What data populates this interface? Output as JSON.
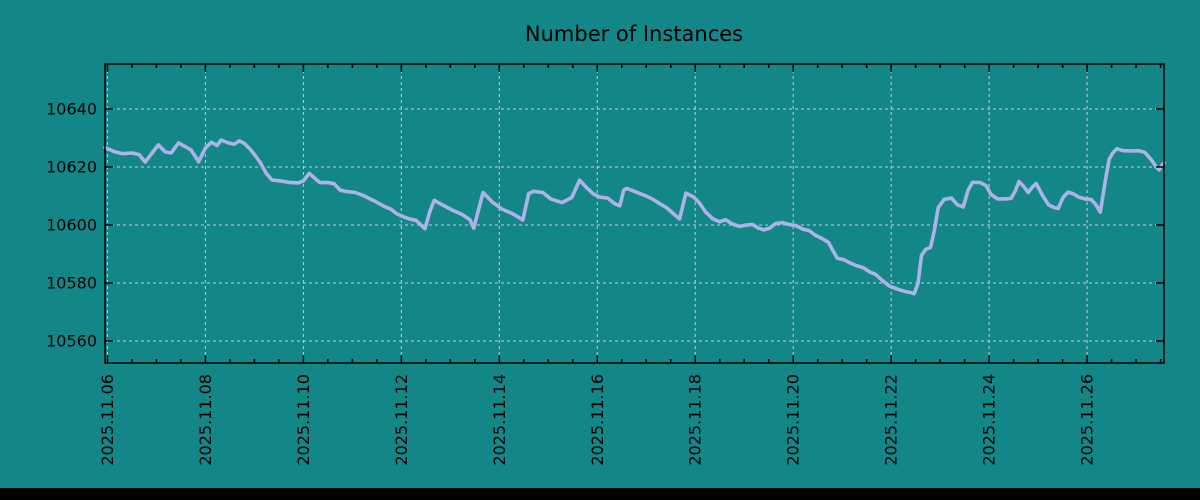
{
  "window": {
    "bottom_bar_color": "#000000"
  },
  "chart_data": {
    "type": "line",
    "title": "Number of Instances",
    "xlabel": "",
    "ylabel": "",
    "grid": "dashed-major-both-axes",
    "legend": "none",
    "colors": {
      "background": "#138688",
      "line": "#aeb2e8",
      "grid": "#c9cfcc",
      "axis": "#000000",
      "text": "#000000"
    },
    "x_axis": {
      "unit": "days since 2025-11-06 00:00",
      "range_days": [
        -0.05,
        21.57
      ],
      "major_ticks_t": [
        0,
        2,
        4,
        6,
        8,
        10,
        12,
        14,
        16,
        18,
        20
      ],
      "tick_labels": [
        "2025.11.06",
        "2025.11.08",
        "2025.11.10",
        "2025.11.12",
        "2025.11.14",
        "2025.11.16",
        "2025.11.18",
        "2025.11.20",
        "2025.11.22",
        "2025.11.24",
        "2025.11.26"
      ],
      "minor_tick_step_days": 0.5,
      "tick_label_rotation_deg": -90
    },
    "y_axis": {
      "range": [
        10552.4,
        10655.5
      ],
      "major_ticks": [
        10560,
        10580,
        10600,
        10620,
        10640
      ],
      "tick_labels": [
        "10560",
        "10580",
        "10600",
        "10620",
        "10640"
      ]
    },
    "series": [
      {
        "name": "instances",
        "color": "#aeb2e8",
        "points_t_days_value": [
          [
            -0.05,
            10626.7
          ],
          [
            0.14,
            10625.3
          ],
          [
            0.31,
            10624.6
          ],
          [
            0.51,
            10624.8
          ],
          [
            0.65,
            10624.2
          ],
          [
            0.77,
            10621.7
          ],
          [
            0.92,
            10625.0
          ],
          [
            1.04,
            10627.6
          ],
          [
            1.18,
            10625.2
          ],
          [
            1.3,
            10624.8
          ],
          [
            1.45,
            10628.3
          ],
          [
            1.59,
            10627.0
          ],
          [
            1.71,
            10625.8
          ],
          [
            1.86,
            10621.8
          ],
          [
            2.0,
            10626.5
          ],
          [
            2.12,
            10628.5
          ],
          [
            2.24,
            10627.4
          ],
          [
            2.32,
            10629.3
          ],
          [
            2.47,
            10628.3
          ],
          [
            2.59,
            10627.8
          ],
          [
            2.69,
            10629.0
          ],
          [
            2.79,
            10628.2
          ],
          [
            2.92,
            10626.0
          ],
          [
            3.02,
            10623.8
          ],
          [
            3.12,
            10621.5
          ],
          [
            3.24,
            10617.8
          ],
          [
            3.36,
            10615.5
          ],
          [
            3.53,
            10615.2
          ],
          [
            3.73,
            10614.6
          ],
          [
            3.89,
            10614.5
          ],
          [
            4.0,
            10615.2
          ],
          [
            4.12,
            10617.8
          ],
          [
            4.24,
            10616.0
          ],
          [
            4.34,
            10614.6
          ],
          [
            4.51,
            10614.6
          ],
          [
            4.63,
            10614.2
          ],
          [
            4.75,
            10612.0
          ],
          [
            4.89,
            10611.5
          ],
          [
            5.06,
            10611.2
          ],
          [
            5.22,
            10610.2
          ],
          [
            5.36,
            10609.0
          ],
          [
            5.5,
            10607.8
          ],
          [
            5.65,
            10606.4
          ],
          [
            5.79,
            10605.4
          ],
          [
            5.91,
            10603.8
          ],
          [
            6.06,
            10602.7
          ],
          [
            6.18,
            10602.0
          ],
          [
            6.3,
            10601.6
          ],
          [
            6.4,
            10600.0
          ],
          [
            6.48,
            10598.7
          ],
          [
            6.59,
            10605.0
          ],
          [
            6.67,
            10608.5
          ],
          [
            6.83,
            10607.0
          ],
          [
            7.03,
            10605.2
          ],
          [
            7.24,
            10603.6
          ],
          [
            7.4,
            10601.8
          ],
          [
            7.48,
            10598.9
          ],
          [
            7.58,
            10605.5
          ],
          [
            7.67,
            10611.2
          ],
          [
            7.85,
            10608.0
          ],
          [
            8.05,
            10605.5
          ],
          [
            8.26,
            10604.0
          ],
          [
            8.4,
            10602.6
          ],
          [
            8.48,
            10601.7
          ],
          [
            8.6,
            10610.8
          ],
          [
            8.7,
            10611.6
          ],
          [
            8.89,
            10611.2
          ],
          [
            9.05,
            10609.0
          ],
          [
            9.28,
            10607.7
          ],
          [
            9.48,
            10609.5
          ],
          [
            9.64,
            10615.4
          ],
          [
            9.77,
            10613.1
          ],
          [
            9.91,
            10610.8
          ],
          [
            10.05,
            10609.6
          ],
          [
            10.21,
            10609.3
          ],
          [
            10.36,
            10607.3
          ],
          [
            10.46,
            10606.6
          ],
          [
            10.54,
            10612.0
          ],
          [
            10.6,
            10612.6
          ],
          [
            10.74,
            10611.7
          ],
          [
            10.87,
            10610.8
          ],
          [
            11.01,
            10609.9
          ],
          [
            11.15,
            10608.7
          ],
          [
            11.28,
            10607.3
          ],
          [
            11.42,
            10605.9
          ],
          [
            11.56,
            10603.8
          ],
          [
            11.68,
            10602.1
          ],
          [
            11.81,
            10611.0
          ],
          [
            11.97,
            10609.6
          ],
          [
            12.09,
            10607.5
          ],
          [
            12.21,
            10604.5
          ],
          [
            12.36,
            10602.1
          ],
          [
            12.5,
            10601.1
          ],
          [
            12.62,
            10601.8
          ],
          [
            12.76,
            10600.3
          ],
          [
            12.91,
            10599.5
          ],
          [
            13.03,
            10599.9
          ],
          [
            13.17,
            10600.2
          ],
          [
            13.29,
            10598.9
          ],
          [
            13.4,
            10598.3
          ],
          [
            13.52,
            10598.9
          ],
          [
            13.64,
            10600.5
          ],
          [
            13.78,
            10600.8
          ],
          [
            13.93,
            10600.1
          ],
          [
            14.05,
            10599.8
          ],
          [
            14.19,
            10598.6
          ],
          [
            14.33,
            10598.0
          ],
          [
            14.45,
            10596.5
          ],
          [
            14.6,
            10595.2
          ],
          [
            14.72,
            10594.0
          ],
          [
            14.8,
            10591.5
          ],
          [
            14.9,
            10588.5
          ],
          [
            15.04,
            10588.0
          ],
          [
            15.15,
            10587.0
          ],
          [
            15.29,
            10586.0
          ],
          [
            15.43,
            10585.3
          ],
          [
            15.56,
            10583.8
          ],
          [
            15.68,
            10583.0
          ],
          [
            15.82,
            10580.8
          ],
          [
            15.96,
            10579.0
          ],
          [
            16.11,
            10578.0
          ],
          [
            16.25,
            10577.2
          ],
          [
            16.39,
            10576.7
          ],
          [
            16.47,
            10576.3
          ],
          [
            16.55,
            10580.0
          ],
          [
            16.62,
            10589.5
          ],
          [
            16.7,
            10591.5
          ],
          [
            16.8,
            10592.2
          ],
          [
            16.88,
            10598.0
          ],
          [
            16.96,
            10606.0
          ],
          [
            17.08,
            10608.8
          ],
          [
            17.23,
            10609.3
          ],
          [
            17.35,
            10607.0
          ],
          [
            17.47,
            10606.2
          ],
          [
            17.57,
            10612.0
          ],
          [
            17.66,
            10614.7
          ],
          [
            17.82,
            10614.6
          ],
          [
            17.94,
            10613.5
          ],
          [
            18.04,
            10610.5
          ],
          [
            18.17,
            10609.0
          ],
          [
            18.33,
            10609.0
          ],
          [
            18.45,
            10609.2
          ],
          [
            18.53,
            10611.6
          ],
          [
            18.61,
            10615.0
          ],
          [
            18.72,
            10613.0
          ],
          [
            18.8,
            10611.2
          ],
          [
            18.88,
            10613.0
          ],
          [
            18.96,
            10614.3
          ],
          [
            19.08,
            10610.5
          ],
          [
            19.21,
            10607.0
          ],
          [
            19.33,
            10606.0
          ],
          [
            19.41,
            10605.7
          ],
          [
            19.51,
            10609.5
          ],
          [
            19.61,
            10611.3
          ],
          [
            19.71,
            10610.8
          ],
          [
            19.84,
            10609.5
          ],
          [
            19.96,
            10609.0
          ],
          [
            20.08,
            10608.8
          ],
          [
            20.18,
            10607.0
          ],
          [
            20.27,
            10604.4
          ],
          [
            20.37,
            10615.0
          ],
          [
            20.45,
            10622.6
          ],
          [
            20.53,
            10625.0
          ],
          [
            20.61,
            10626.3
          ],
          [
            20.73,
            10625.6
          ],
          [
            20.9,
            10625.5
          ],
          [
            21.06,
            10625.6
          ],
          [
            21.18,
            10625.0
          ],
          [
            21.31,
            10622.5
          ],
          [
            21.41,
            10620.0
          ],
          [
            21.47,
            10619.0
          ],
          [
            21.53,
            10620.6
          ],
          [
            21.57,
            10621.4
          ]
        ]
      }
    ]
  }
}
